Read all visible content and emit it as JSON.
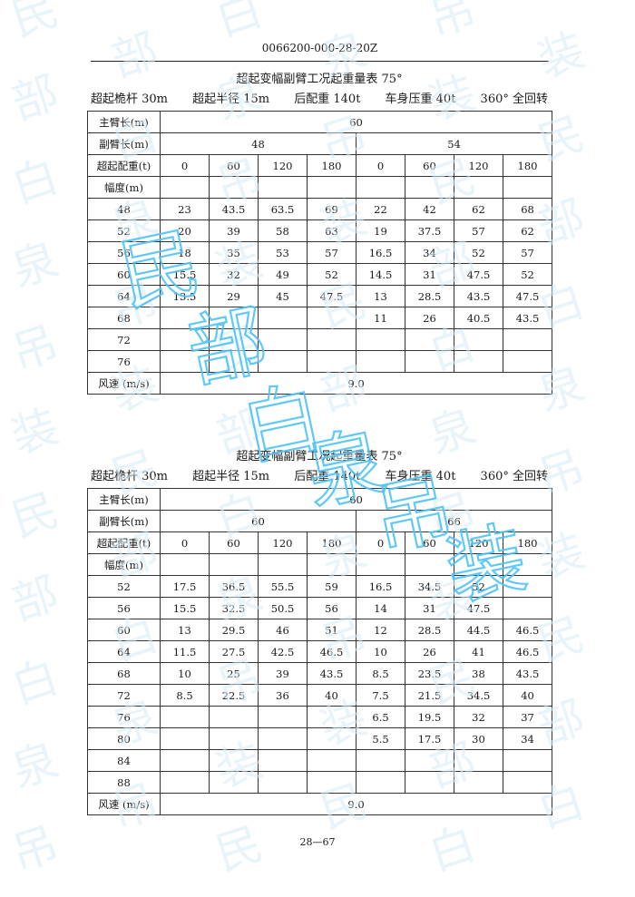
{
  "header": {
    "doc_code": "0066200-000-28-20Z"
  },
  "tables": [
    {
      "title": "超起变幅副臂工况起重量表 75°",
      "conditions": [
        "超起桅杆 30m",
        "超起半径 15m",
        "后配重 140t",
        "车身压重 40t",
        "360° 全回转"
      ],
      "row_labels": {
        "main_boom": "主臂长(m)",
        "jib": "副臂长(m)",
        "counterweight": "超起配重(t)",
        "radius": "幅度(m)",
        "wind": "风速 (m/s)"
      },
      "main_boom_length": "60",
      "jib_groups": [
        {
          "length": "48",
          "counterweights": [
            "0",
            "60",
            "120",
            "180"
          ]
        },
        {
          "length": "54",
          "counterweights": [
            "0",
            "60",
            "120",
            "180"
          ]
        }
      ],
      "rows": [
        {
          "radius": "48",
          "values": [
            "23",
            "43.5",
            "63.5",
            "69",
            "22",
            "42",
            "62",
            "68"
          ]
        },
        {
          "radius": "52",
          "values": [
            "20",
            "39",
            "58",
            "63",
            "19",
            "37.5",
            "57",
            "62"
          ]
        },
        {
          "radius": "56",
          "values": [
            "18",
            "35",
            "53",
            "57",
            "16.5",
            "34",
            "52",
            "57"
          ]
        },
        {
          "radius": "60",
          "values": [
            "15.5",
            "32",
            "49",
            "52",
            "14.5",
            "31",
            "47.5",
            "52"
          ]
        },
        {
          "radius": "64",
          "values": [
            "13.5",
            "29",
            "45",
            "47.5",
            "13",
            "28.5",
            "43.5",
            "47.5"
          ]
        },
        {
          "radius": "68",
          "values": [
            "",
            "",
            "",
            "",
            "11",
            "26",
            "40.5",
            "43.5"
          ]
        },
        {
          "radius": "72",
          "values": [
            "",
            "",
            "",
            "",
            "",
            "",
            "",
            ""
          ]
        },
        {
          "radius": "76",
          "values": [
            "",
            "",
            "",
            "",
            "",
            "",
            "",
            ""
          ]
        }
      ],
      "wind_speed": "9.0"
    },
    {
      "title": "超起变幅副臂工况起重量表 75°",
      "conditions": [
        "超起桅杆 30m",
        "超起半径 15m",
        "后配重 140t",
        "车身压重 40t",
        "360° 全回转"
      ],
      "row_labels": {
        "main_boom": "主臂长(m)",
        "jib": "副臂长(m)",
        "counterweight": "超起配重(t)",
        "radius": "幅度(m)",
        "wind": "风速 (m/s)"
      },
      "main_boom_length": "60",
      "jib_groups": [
        {
          "length": "60",
          "counterweights": [
            "0",
            "60",
            "120",
            "180"
          ]
        },
        {
          "length": "66",
          "counterweights": [
            "0",
            "60",
            "120",
            "180"
          ]
        }
      ],
      "rows": [
        {
          "radius": "52",
          "values": [
            "17.5",
            "36.5",
            "55.5",
            "59",
            "16.5",
            "34.5",
            "52",
            ""
          ]
        },
        {
          "radius": "56",
          "values": [
            "15.5",
            "32.5",
            "50.5",
            "56",
            "14",
            "31",
            "47.5",
            ""
          ]
        },
        {
          "radius": "60",
          "values": [
            "13",
            "29.5",
            "46",
            "51",
            "12",
            "28.5",
            "44.5",
            "46.5"
          ]
        },
        {
          "radius": "64",
          "values": [
            "11.5",
            "27.5",
            "42.5",
            "46.5",
            "10",
            "26",
            "41",
            "46.5"
          ]
        },
        {
          "radius": "68",
          "values": [
            "10",
            "25",
            "39",
            "43.5",
            "8.5",
            "23.5",
            "38",
            "43.5"
          ]
        },
        {
          "radius": "72",
          "values": [
            "8.5",
            "22.5",
            "36",
            "40",
            "7.5",
            "21.5",
            "34.5",
            "40"
          ]
        },
        {
          "radius": "76",
          "values": [
            "",
            "",
            "",
            "",
            "6.5",
            "19.5",
            "32",
            "37"
          ]
        },
        {
          "radius": "80",
          "values": [
            "",
            "",
            "",
            "",
            "5.5",
            "17.5",
            "30",
            "34"
          ]
        },
        {
          "radius": "84",
          "values": [
            "",
            "",
            "",
            "",
            "",
            "",
            "",
            ""
          ]
        },
        {
          "radius": "88",
          "values": [
            "",
            "",
            "",
            "",
            "",
            "",
            "",
            ""
          ]
        }
      ],
      "wind_speed": "9.0"
    }
  ],
  "footer": {
    "page": "28—67"
  },
  "watermark": {
    "color": "#4fc3f7",
    "background_color": "#d6ecf6",
    "text": "民部白泉吊装"
  }
}
